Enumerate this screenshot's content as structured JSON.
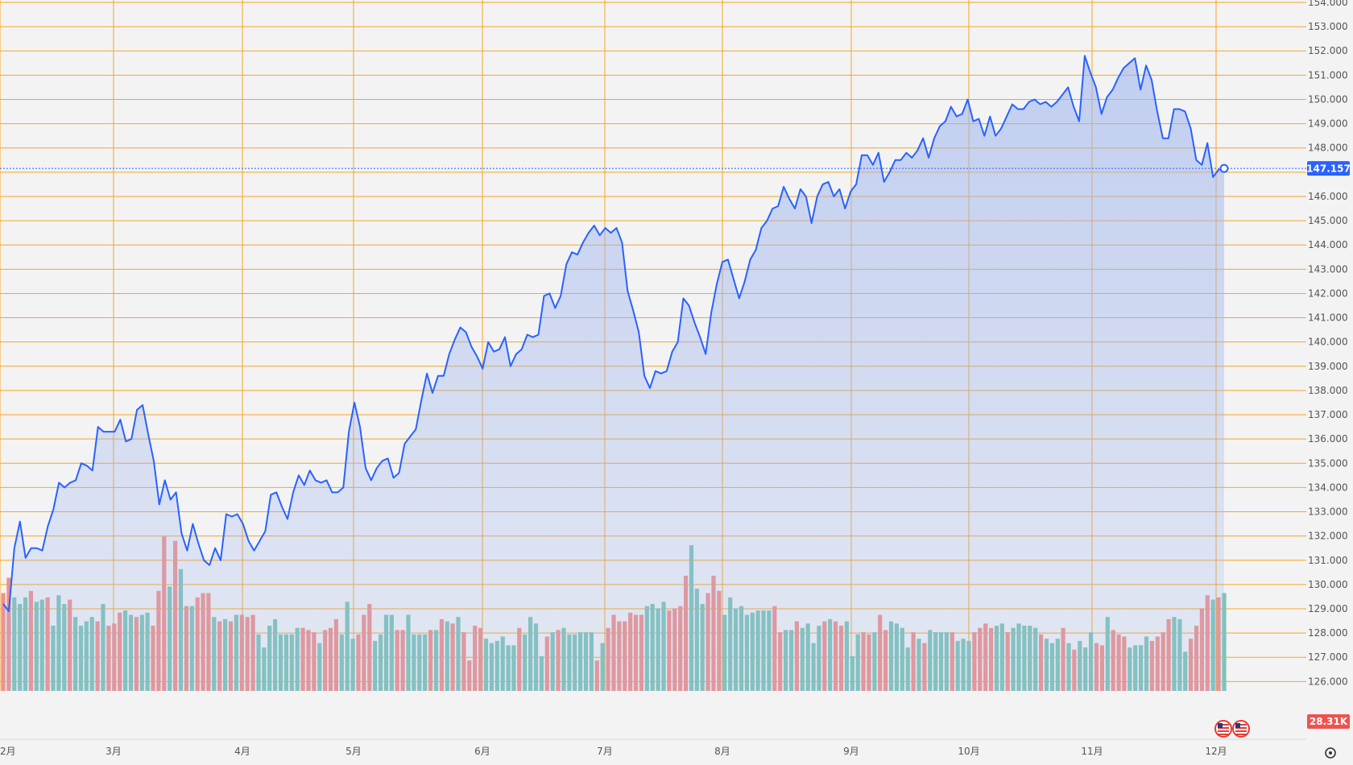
{
  "chart_data": {
    "type": "area",
    "title": "",
    "xlabel": "",
    "ylabel": "",
    "ylim": [
      125.5,
      154.0
    ],
    "grid": true,
    "legend": "none",
    "colors": {
      "background": "#f3f3f3",
      "grid": "#f5a623",
      "line": "#2962ff",
      "fill": "#9fb5ee",
      "volume_up": "#7dc4b6",
      "volume_down": "#f0908a",
      "current_label": "#2962ff",
      "volume_label": "#ef5350"
    },
    "y_ticks": [
      "154.000",
      "153.000",
      "152.000",
      "151.000",
      "150.000",
      "149.000",
      "148.000",
      "147.000",
      "146.000",
      "145.000",
      "144.000",
      "143.000",
      "142.000",
      "141.000",
      "140.000",
      "139.000",
      "138.000",
      "137.000",
      "136.000",
      "135.000",
      "134.000",
      "133.000",
      "132.000",
      "131.000",
      "130.000",
      "129.000",
      "128.000",
      "127.000",
      "126.000"
    ],
    "x_ticks": [
      "2月",
      "3月",
      "4月",
      "5月",
      "6月",
      "7月",
      "8月",
      "9月",
      "10月",
      "11月",
      "12月"
    ],
    "current_value": "147.157",
    "volume_value": "28.31K",
    "icons": [
      "us-flag-icon",
      "us-flag-icon",
      "settings-icon"
    ],
    "series": [
      {
        "name": "",
        "values": [
          129.2,
          128.9,
          131.5,
          132.6,
          131.1,
          131.5,
          131.5,
          131.4,
          132.4,
          133.1,
          134.2,
          134.0,
          134.2,
          134.3,
          135.0,
          134.9,
          134.7,
          136.5,
          136.3,
          136.3,
          136.3,
          136.8,
          135.9,
          136.0,
          137.2,
          137.4,
          136.2,
          135.1,
          133.3,
          134.3,
          133.5,
          133.8,
          132.1,
          131.4,
          132.5,
          131.7,
          131.0,
          130.8,
          131.5,
          131.0,
          132.9,
          132.8,
          132.9,
          132.5,
          131.8,
          131.4,
          131.8,
          132.2,
          133.7,
          133.8,
          133.2,
          132.7,
          133.8,
          134.5,
          134.1,
          134.7,
          134.3,
          134.2,
          134.3,
          133.8,
          133.8,
          134.0,
          136.3,
          137.5,
          136.5,
          134.8,
          134.3,
          134.8,
          135.1,
          135.2,
          134.4,
          134.6,
          135.8,
          136.1,
          136.4,
          137.6,
          138.7,
          137.9,
          138.6,
          138.6,
          139.5,
          140.1,
          140.6,
          140.4,
          139.8,
          139.4,
          138.9,
          140.0,
          139.6,
          139.7,
          140.2,
          139.0,
          139.5,
          139.7,
          140.3,
          140.2,
          140.3,
          141.9,
          142.0,
          141.4,
          141.9,
          143.2,
          143.7,
          143.6,
          144.1,
          144.5,
          144.8,
          144.4,
          144.7,
          144.5,
          144.7,
          144.1,
          142.1,
          141.3,
          140.4,
          138.6,
          138.1,
          138.8,
          138.7,
          138.8,
          139.6,
          140.0,
          141.8,
          141.5,
          140.8,
          140.2,
          139.5,
          141.2,
          142.4,
          143.3,
          143.4,
          142.6,
          141.8,
          142.5,
          143.4,
          143.8,
          144.7,
          145.0,
          145.5,
          145.6,
          146.4,
          145.9,
          145.5,
          146.3,
          146.0,
          144.9,
          146.0,
          146.5,
          146.6,
          146.0,
          146.3,
          145.5,
          146.2,
          146.5,
          147.7,
          147.7,
          147.3,
          147.8,
          146.6,
          147.0,
          147.5,
          147.5,
          147.8,
          147.6,
          147.9,
          148.4,
          147.6,
          148.4,
          148.9,
          149.1,
          149.7,
          149.3,
          149.4,
          150.0,
          149.1,
          149.2,
          148.5,
          149.3,
          148.5,
          148.8,
          149.3,
          149.8,
          149.6,
          149.6,
          149.9,
          150.0,
          149.8,
          149.9,
          149.7,
          149.9,
          150.2,
          150.5,
          149.7,
          149.1,
          151.8,
          151.1,
          150.5,
          149.4,
          150.1,
          150.4,
          150.9,
          151.3,
          151.5,
          151.7,
          150.4,
          151.4,
          150.8,
          149.5,
          148.4,
          148.4,
          149.6,
          149.6,
          149.5,
          148.8,
          147.5,
          147.3,
          148.2,
          146.8,
          147.1,
          147.157
        ]
      }
    ],
    "volume": [
      {
        "v": 4.5,
        "up": false
      },
      {
        "v": 5.2,
        "up": false
      },
      {
        "v": 4.3,
        "up": true
      },
      {
        "v": 4.0,
        "up": true
      },
      {
        "v": 4.3,
        "up": true
      },
      {
        "v": 4.6,
        "up": false
      },
      {
        "v": 4.1,
        "up": true
      },
      {
        "v": 4.2,
        "up": true
      },
      {
        "v": 4.3,
        "up": false
      },
      {
        "v": 3.0,
        "up": true
      },
      {
        "v": 4.4,
        "up": true
      },
      {
        "v": 4.0,
        "up": true
      },
      {
        "v": 4.2,
        "up": false
      },
      {
        "v": 3.4,
        "up": true
      },
      {
        "v": 3.0,
        "up": true
      },
      {
        "v": 3.2,
        "up": true
      },
      {
        "v": 3.4,
        "up": true
      },
      {
        "v": 3.2,
        "up": false
      },
      {
        "v": 4.0,
        "up": true
      },
      {
        "v": 3.0,
        "up": false
      },
      {
        "v": 3.1,
        "up": false
      },
      {
        "v": 3.6,
        "up": false
      },
      {
        "v": 3.7,
        "up": true
      },
      {
        "v": 3.5,
        "up": true
      },
      {
        "v": 3.4,
        "up": false
      },
      {
        "v": 3.5,
        "up": true
      },
      {
        "v": 3.6,
        "up": true
      },
      {
        "v": 3.0,
        "up": false
      },
      {
        "v": 4.6,
        "up": false
      },
      {
        "v": 7.1,
        "up": false
      },
      {
        "v": 4.8,
        "up": true
      },
      {
        "v": 6.9,
        "up": false
      },
      {
        "v": 5.6,
        "up": true
      },
      {
        "v": 3.9,
        "up": false
      },
      {
        "v": 3.9,
        "up": true
      },
      {
        "v": 4.3,
        "up": false
      },
      {
        "v": 4.5,
        "up": false
      },
      {
        "v": 4.5,
        "up": false
      },
      {
        "v": 3.4,
        "up": true
      },
      {
        "v": 3.2,
        "up": false
      },
      {
        "v": 3.3,
        "up": true
      },
      {
        "v": 3.2,
        "up": false
      },
      {
        "v": 3.5,
        "up": true
      },
      {
        "v": 3.5,
        "up": false
      },
      {
        "v": 3.4,
        "up": false
      },
      {
        "v": 3.5,
        "up": false
      },
      {
        "v": 2.6,
        "up": true
      },
      {
        "v": 2.0,
        "up": true
      },
      {
        "v": 3.0,
        "up": true
      },
      {
        "v": 3.3,
        "up": true
      },
      {
        "v": 2.6,
        "up": true
      },
      {
        "v": 2.6,
        "up": true
      },
      {
        "v": 2.6,
        "up": true
      },
      {
        "v": 2.9,
        "up": true
      },
      {
        "v": 2.9,
        "up": false
      },
      {
        "v": 2.8,
        "up": false
      },
      {
        "v": 2.7,
        "up": false
      },
      {
        "v": 2.2,
        "up": true
      },
      {
        "v": 2.8,
        "up": false
      },
      {
        "v": 2.9,
        "up": false
      },
      {
        "v": 3.3,
        "up": false
      },
      {
        "v": 2.6,
        "up": true
      },
      {
        "v": 4.1,
        "up": true
      },
      {
        "v": 2.4,
        "up": true
      },
      {
        "v": 2.6,
        "up": false
      },
      {
        "v": 3.5,
        "up": false
      },
      {
        "v": 4.0,
        "up": false
      },
      {
        "v": 2.3,
        "up": true
      },
      {
        "v": 2.6,
        "up": true
      },
      {
        "v": 3.5,
        "up": true
      },
      {
        "v": 3.5,
        "up": true
      },
      {
        "v": 2.8,
        "up": false
      },
      {
        "v": 2.8,
        "up": false
      },
      {
        "v": 3.5,
        "up": true
      },
      {
        "v": 2.6,
        "up": true
      },
      {
        "v": 2.6,
        "up": true
      },
      {
        "v": 2.6,
        "up": true
      },
      {
        "v": 2.8,
        "up": false
      },
      {
        "v": 2.8,
        "up": true
      },
      {
        "v": 3.3,
        "up": false
      },
      {
        "v": 3.2,
        "up": true
      },
      {
        "v": 3.1,
        "up": false
      },
      {
        "v": 3.4,
        "up": true
      },
      {
        "v": 2.7,
        "up": false
      },
      {
        "v": 1.4,
        "up": false
      },
      {
        "v": 3.0,
        "up": false
      },
      {
        "v": 2.9,
        "up": false
      },
      {
        "v": 2.4,
        "up": true
      },
      {
        "v": 2.2,
        "up": true
      },
      {
        "v": 2.3,
        "up": true
      },
      {
        "v": 2.5,
        "up": true
      },
      {
        "v": 2.1,
        "up": true
      },
      {
        "v": 2.1,
        "up": true
      },
      {
        "v": 2.9,
        "up": false
      },
      {
        "v": 2.6,
        "up": true
      },
      {
        "v": 3.4,
        "up": true
      },
      {
        "v": 3.1,
        "up": true
      },
      {
        "v": 1.6,
        "up": true
      },
      {
        "v": 2.5,
        "up": false
      },
      {
        "v": 2.7,
        "up": true
      },
      {
        "v": 2.8,
        "up": false
      },
      {
        "v": 2.9,
        "up": true
      },
      {
        "v": 2.6,
        "up": true
      },
      {
        "v": 2.6,
        "up": true
      },
      {
        "v": 2.7,
        "up": true
      },
      {
        "v": 2.7,
        "up": true
      },
      {
        "v": 2.7,
        "up": true
      },
      {
        "v": 1.4,
        "up": false
      },
      {
        "v": 2.2,
        "up": true
      },
      {
        "v": 2.9,
        "up": false
      },
      {
        "v": 3.5,
        "up": false
      },
      {
        "v": 3.2,
        "up": false
      },
      {
        "v": 3.2,
        "up": false
      },
      {
        "v": 3.6,
        "up": false
      },
      {
        "v": 3.5,
        "up": false
      },
      {
        "v": 3.5,
        "up": false
      },
      {
        "v": 3.9,
        "up": true
      },
      {
        "v": 4.0,
        "up": true
      },
      {
        "v": 3.8,
        "up": true
      },
      {
        "v": 4.1,
        "up": true
      },
      {
        "v": 3.7,
        "up": false
      },
      {
        "v": 3.8,
        "up": false
      },
      {
        "v": 3.9,
        "up": false
      },
      {
        "v": 5.3,
        "up": false
      },
      {
        "v": 6.7,
        "up": true
      },
      {
        "v": 4.7,
        "up": true
      },
      {
        "v": 4.0,
        "up": true
      },
      {
        "v": 4.5,
        "up": false
      },
      {
        "v": 5.3,
        "up": false
      },
      {
        "v": 4.6,
        "up": false
      },
      {
        "v": 3.5,
        "up": true
      },
      {
        "v": 4.3,
        "up": true
      },
      {
        "v": 3.8,
        "up": true
      },
      {
        "v": 3.9,
        "up": true
      },
      {
        "v": 3.5,
        "up": true
      },
      {
        "v": 3.6,
        "up": true
      },
      {
        "v": 3.7,
        "up": true
      },
      {
        "v": 3.7,
        "up": true
      },
      {
        "v": 3.7,
        "up": true
      },
      {
        "v": 3.9,
        "up": false
      },
      {
        "v": 2.7,
        "up": false
      },
      {
        "v": 2.8,
        "up": true
      },
      {
        "v": 2.8,
        "up": true
      },
      {
        "v": 3.2,
        "up": false
      },
      {
        "v": 2.9,
        "up": true
      },
      {
        "v": 3.1,
        "up": true
      },
      {
        "v": 2.2,
        "up": true
      },
      {
        "v": 3.0,
        "up": true
      },
      {
        "v": 3.2,
        "up": false
      },
      {
        "v": 3.3,
        "up": true
      },
      {
        "v": 3.2,
        "up": false
      },
      {
        "v": 3.0,
        "up": false
      },
      {
        "v": 3.2,
        "up": true
      },
      {
        "v": 1.6,
        "up": true
      },
      {
        "v": 2.6,
        "up": true
      },
      {
        "v": 2.7,
        "up": false
      },
      {
        "v": 2.6,
        "up": false
      },
      {
        "v": 2.7,
        "up": true
      },
      {
        "v": 3.5,
        "up": false
      },
      {
        "v": 2.8,
        "up": false
      },
      {
        "v": 3.2,
        "up": true
      },
      {
        "v": 3.1,
        "up": true
      },
      {
        "v": 2.9,
        "up": true
      },
      {
        "v": 2.0,
        "up": true
      },
      {
        "v": 2.7,
        "up": false
      },
      {
        "v": 2.4,
        "up": true
      },
      {
        "v": 2.2,
        "up": false
      },
      {
        "v": 2.8,
        "up": true
      },
      {
        "v": 2.7,
        "up": true
      },
      {
        "v": 2.7,
        "up": true
      },
      {
        "v": 2.7,
        "up": true
      },
      {
        "v": 2.7,
        "up": false
      },
      {
        "v": 2.3,
        "up": true
      },
      {
        "v": 2.4,
        "up": true
      },
      {
        "v": 2.3,
        "up": true
      },
      {
        "v": 2.7,
        "up": false
      },
      {
        "v": 2.9,
        "up": false
      },
      {
        "v": 3.1,
        "up": false
      },
      {
        "v": 2.9,
        "up": false
      },
      {
        "v": 3.0,
        "up": true
      },
      {
        "v": 3.1,
        "up": true
      },
      {
        "v": 2.7,
        "up": false
      },
      {
        "v": 2.9,
        "up": true
      },
      {
        "v": 3.1,
        "up": true
      },
      {
        "v": 3.0,
        "up": true
      },
      {
        "v": 3.0,
        "up": true
      },
      {
        "v": 2.9,
        "up": true
      },
      {
        "v": 2.6,
        "up": false
      },
      {
        "v": 2.4,
        "up": true
      },
      {
        "v": 2.2,
        "up": true
      },
      {
        "v": 2.4,
        "up": true
      },
      {
        "v": 2.9,
        "up": false
      },
      {
        "v": 2.2,
        "up": true
      },
      {
        "v": 1.9,
        "up": false
      },
      {
        "v": 2.3,
        "up": true
      },
      {
        "v": 2.0,
        "up": true
      },
      {
        "v": 2.7,
        "up": true
      },
      {
        "v": 2.2,
        "up": false
      },
      {
        "v": 2.1,
        "up": false
      },
      {
        "v": 3.4,
        "up": true
      },
      {
        "v": 2.8,
        "up": false
      },
      {
        "v": 2.6,
        "up": false
      },
      {
        "v": 2.5,
        "up": false
      },
      {
        "v": 2.0,
        "up": true
      },
      {
        "v": 2.1,
        "up": true
      },
      {
        "v": 2.1,
        "up": true
      },
      {
        "v": 2.5,
        "up": true
      },
      {
        "v": 2.3,
        "up": false
      },
      {
        "v": 2.5,
        "up": false
      },
      {
        "v": 2.7,
        "up": false
      },
      {
        "v": 3.3,
        "up": false
      },
      {
        "v": 3.4,
        "up": true
      },
      {
        "v": 3.3,
        "up": true
      },
      {
        "v": 1.8,
        "up": true
      },
      {
        "v": 2.4,
        "up": false
      },
      {
        "v": 3.0,
        "up": false
      },
      {
        "v": 3.8,
        "up": false
      },
      {
        "v": 4.4,
        "up": false
      },
      {
        "v": 4.2,
        "up": true
      },
      {
        "v": 4.3,
        "up": false
      },
      {
        "v": 4.5,
        "up": true
      }
    ]
  }
}
